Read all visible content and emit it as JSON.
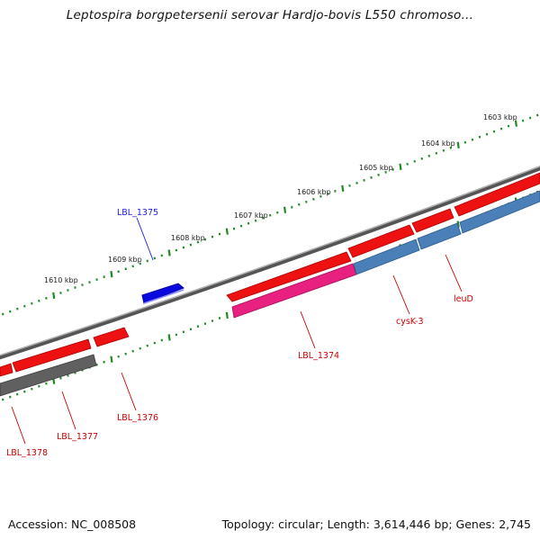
{
  "title": "Leptospira borgpetersenii serovar Hardjo-bovis L550 chromoso…",
  "footer": {
    "accession": "Accession: NC_008508",
    "stats": "Topology: circular; Length: 3,614,446 bp; Genes: 2,745"
  },
  "scale": {
    "unit": "kbp",
    "labels": [
      "1603 kbp",
      "1604 kbp",
      "1605 kbp",
      "1606 kbp",
      "1607 kbp",
      "1608 kbp",
      "1609 kbp",
      "1610 kbp"
    ]
  },
  "genes": [
    {
      "name": "LBL_1375",
      "strand": "+",
      "color": "#1a1aee"
    },
    {
      "name": "LBL_1374",
      "strand": "-",
      "color": "#cc0000"
    },
    {
      "name": "cysK-3",
      "strand": "-",
      "color": "#cc0000"
    },
    {
      "name": "leuD",
      "strand": "-",
      "color": "#cc0000"
    },
    {
      "name": "LBL_1376",
      "strand": "-",
      "color": "#cc0000"
    },
    {
      "name": "LBL_1377",
      "strand": "-",
      "color": "#cc0000"
    },
    {
      "name": "LBL_1378",
      "strand": "-",
      "color": "#cc0000"
    }
  ],
  "colors": {
    "backbone": "#8a8a8a",
    "tick": "#1f8a1f",
    "cds": "#ee1111",
    "rna_or_feature": "#e8207f",
    "blue_feature": "#4a7fb8",
    "gray_feature": "#606060",
    "label_red": "#cc0000",
    "label_blue": "#1a1aee"
  }
}
